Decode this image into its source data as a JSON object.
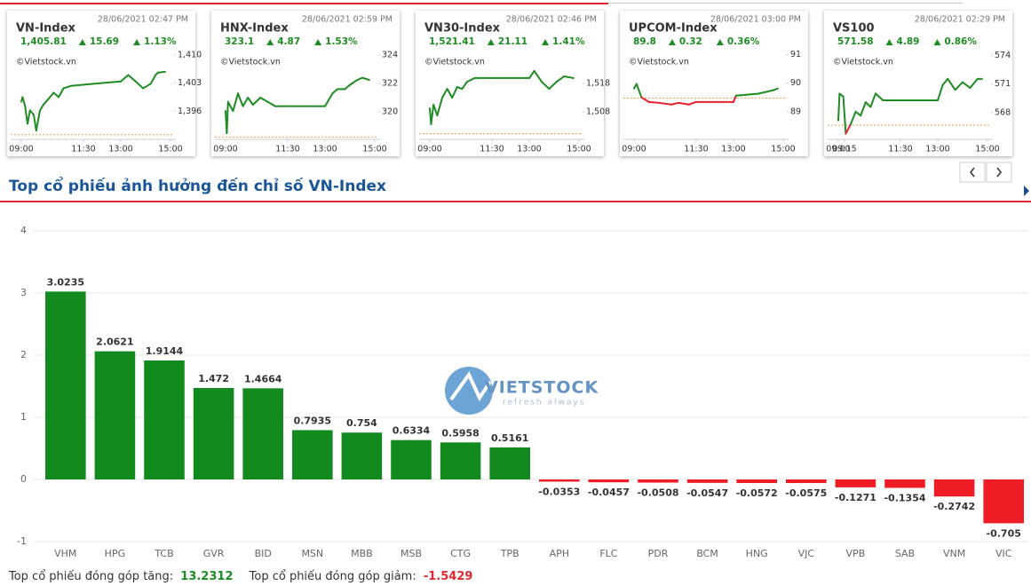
{
  "chart_data": [
    {
      "type": "line",
      "title": "VN-Index",
      "date": "28/06/2021 02:47 PM",
      "stats": {
        "value": "1,405.81",
        "change": "15.69",
        "percent": "1.13%"
      },
      "source": "©Vietstock.vn",
      "x": [
        9.0,
        9.05,
        9.15,
        9.25,
        9.35,
        9.5,
        9.6,
        9.75,
        9.9,
        10.1,
        10.3,
        10.5,
        10.7,
        11.0,
        11.5,
        13.0,
        13.3,
        13.6,
        13.9,
        14.2,
        14.4,
        14.5,
        14.78
      ],
      "values": [
        1398.4,
        1399.5,
        1397.3,
        1392.9,
        1396.2,
        1395.1,
        1391.2,
        1396.2,
        1397.7,
        1399.1,
        1400.6,
        1399.5,
        1401.7,
        1402.3,
        1402.6,
        1403.4,
        1405.0,
        1403.4,
        1401.7,
        1402.8,
        1405.0,
        1405.6,
        1405.8
      ],
      "reference": 1390.12,
      "color": "#1e8c22",
      "below_color": "#e8202a",
      "xlim": [
        9,
        15
      ],
      "ylim": [
        1389,
        1411.5
      ],
      "xticks": [
        {
          "value": 9,
          "label": "09:00"
        },
        {
          "value": 11.5,
          "label": "11:30"
        },
        {
          "value": 13,
          "label": "13:00"
        },
        {
          "value": 15,
          "label": "15:00"
        }
      ],
      "yticks": [
        {
          "value": 1396,
          "label": "1,396"
        },
        {
          "value": 1403,
          "label": "1,403"
        },
        {
          "value": 1410,
          "label": "1,410"
        }
      ]
    },
    {
      "type": "line",
      "title": "HNX-Index",
      "date": "28/06/2021 02:59 PM",
      "stats": {
        "value": "323.1",
        "change": "4.87",
        "percent": "1.53%"
      },
      "source": "©Vietstock.vn",
      "x": [
        9.0,
        9.05,
        9.1,
        9.3,
        9.5,
        9.7,
        9.9,
        10.1,
        10.4,
        10.7,
        11.0,
        11.5,
        13.0,
        13.3,
        13.5,
        13.8,
        14.0,
        14.3,
        14.5,
        14.78
      ],
      "values": [
        320.06,
        318.5,
        320.7,
        320.06,
        321.3,
        320.4,
        321.0,
        320.5,
        321.0,
        320.7,
        320.4,
        320.4,
        320.4,
        321.3,
        321.6,
        321.6,
        321.9,
        322.25,
        322.4,
        322.25
      ],
      "reference": 318.23,
      "color": "#1e8c22",
      "below_color": "#e8202a",
      "xlim": [
        9,
        15
      ],
      "ylim": [
        318.06,
        324.44
      ],
      "xticks": [
        {
          "value": 9,
          "label": "09:00"
        },
        {
          "value": 11.5,
          "label": "11:30"
        },
        {
          "value": 13,
          "label": "13:00"
        },
        {
          "value": 15,
          "label": "15:00"
        }
      ],
      "yticks": [
        320,
        322,
        324
      ]
    },
    {
      "type": "line",
      "title": "VN30-Index",
      "date": "28/06/2021 02:46 PM",
      "stats": {
        "value": "1,521.41",
        "change": "21.11",
        "percent": "1.41%"
      },
      "source": "©Vietstock.vn",
      "x": [
        9.0,
        9.05,
        9.15,
        9.3,
        9.5,
        9.7,
        9.9,
        10.1,
        10.3,
        10.5,
        10.8,
        11.5,
        13.0,
        13.2,
        13.5,
        13.8,
        14.1,
        14.4,
        14.78
      ],
      "values": [
        1509.25,
        1503.6,
        1510.5,
        1506.75,
        1513.0,
        1516.1,
        1513.0,
        1516.75,
        1516.1,
        1518.6,
        1519.9,
        1519.9,
        1519.9,
        1522.4,
        1518.6,
        1516.1,
        1518.6,
        1520.5,
        1519.9
      ],
      "reference": 1500.3,
      "color": "#1e8c22",
      "below_color": "#e8202a",
      "xlim": [
        9,
        15
      ],
      "ylim": [
        1498.3,
        1530.2
      ],
      "xticks": [
        {
          "value": 9,
          "label": "09:00"
        },
        {
          "value": 11.5,
          "label": "11:30"
        },
        {
          "value": 13,
          "label": "13:00"
        },
        {
          "value": 15,
          "label": "15:00"
        }
      ],
      "yticks": [
        {
          "value": 1508,
          "label": "1,508"
        },
        {
          "value": 1518,
          "label": "1,518"
        }
      ]
    },
    {
      "type": "line",
      "title": "UPCOM-Index",
      "date": "28/06/2021 03:00 PM",
      "stats": {
        "value": "89.8",
        "change": "0.32",
        "percent": "0.36%"
      },
      "source": "©Vietstock.vn",
      "x": [
        9.0,
        9.1,
        9.3,
        9.6,
        10.0,
        10.5,
        10.8,
        11.2,
        11.5,
        13.0,
        13.1,
        13.5,
        14.0,
        14.3,
        14.6,
        14.78
      ],
      "values": [
        89.81,
        89.97,
        89.5,
        89.34,
        89.31,
        89.25,
        89.31,
        89.25,
        89.34,
        89.34,
        89.56,
        89.59,
        89.63,
        89.69,
        89.75,
        89.81
      ],
      "reference": 89.48,
      "color": "#1e8c22",
      "below_color": "#e8202a",
      "xlim": [
        9,
        15
      ],
      "ylim": [
        88.03,
        91.2
      ],
      "xticks": [
        {
          "value": 9,
          "label": "09:00"
        },
        {
          "value": 11.5,
          "label": "11:30"
        },
        {
          "value": 13,
          "label": "13:00"
        },
        {
          "value": 15,
          "label": "15:00"
        }
      ],
      "yticks": [
        89,
        90,
        91
      ]
    },
    {
      "type": "line",
      "title": "VS100",
      "date": "28/06/2021 02:29 PM",
      "stats": {
        "value": "571.58",
        "change": "4.89",
        "percent": "0.86%"
      },
      "source": "©Vietstock.vn",
      "x": [
        9.0,
        9.05,
        9.2,
        9.3,
        9.5,
        9.7,
        9.9,
        10.1,
        10.3,
        10.5,
        10.8,
        11.5,
        13.0,
        13.2,
        13.4,
        13.7,
        14.0,
        14.3,
        14.6,
        14.78
      ],
      "values": [
        567.2,
        570.0,
        569.7,
        565.8,
        566.8,
        568.1,
        567.7,
        569.1,
        568.6,
        570.0,
        569.3,
        569.3,
        569.3,
        570.9,
        571.55,
        570.4,
        571.2,
        570.6,
        571.55,
        571.55
      ],
      "reference": 566.69,
      "color": "#1e8c22",
      "below_color": "#e8202a",
      "xlim": [
        9,
        15
      ],
      "ylim": [
        565.2,
        574.7
      ],
      "xticks": [
        {
          "value": 9,
          "label": "09:00"
        },
        {
          "value": 9.25,
          "label": "09:15"
        },
        {
          "value": 11.5,
          "label": "11:30"
        },
        {
          "value": 13,
          "label": "13:00"
        },
        {
          "value": 15,
          "label": "15:00"
        }
      ],
      "yticks": [
        568,
        571,
        574
      ]
    },
    {
      "type": "bar",
      "title": "Top cổ phiếu ảnh hưởng đến chỉ số VN-Index",
      "categories": [
        "VHM",
        "HPG",
        "TCB",
        "GVR",
        "BID",
        "MSN",
        "MBB",
        "MSB",
        "CTG",
        "TPB",
        "APH",
        "FLC",
        "PDR",
        "BCM",
        "HNG",
        "VJC",
        "VPB",
        "SAB",
        "VNM",
        "VIC"
      ],
      "values": [
        3.0235,
        2.0621,
        1.9144,
        1.472,
        1.4664,
        0.7935,
        0.754,
        0.6334,
        0.5958,
        0.5161,
        -0.0353,
        -0.0457,
        -0.0508,
        -0.0547,
        -0.0572,
        -0.0575,
        -0.1271,
        -0.1354,
        -0.2742,
        -0.705
      ],
      "color": "#138a1d",
      "negative_color": "#ee1c25",
      "ylim": [
        -1,
        4
      ],
      "yticks": [
        -1,
        0,
        1,
        2,
        3,
        4
      ],
      "grid": true
    }
  ],
  "watermark": {
    "brand": "VIETSTOCK",
    "tagline": "refresh always"
  },
  "footer": {
    "up_label": "Top cổ phiếu đóng góp tăng:",
    "up_value": "13.2312",
    "down_label": "Top cổ phiếu đóng góp giảm:",
    "down_value": "-1.5429"
  }
}
